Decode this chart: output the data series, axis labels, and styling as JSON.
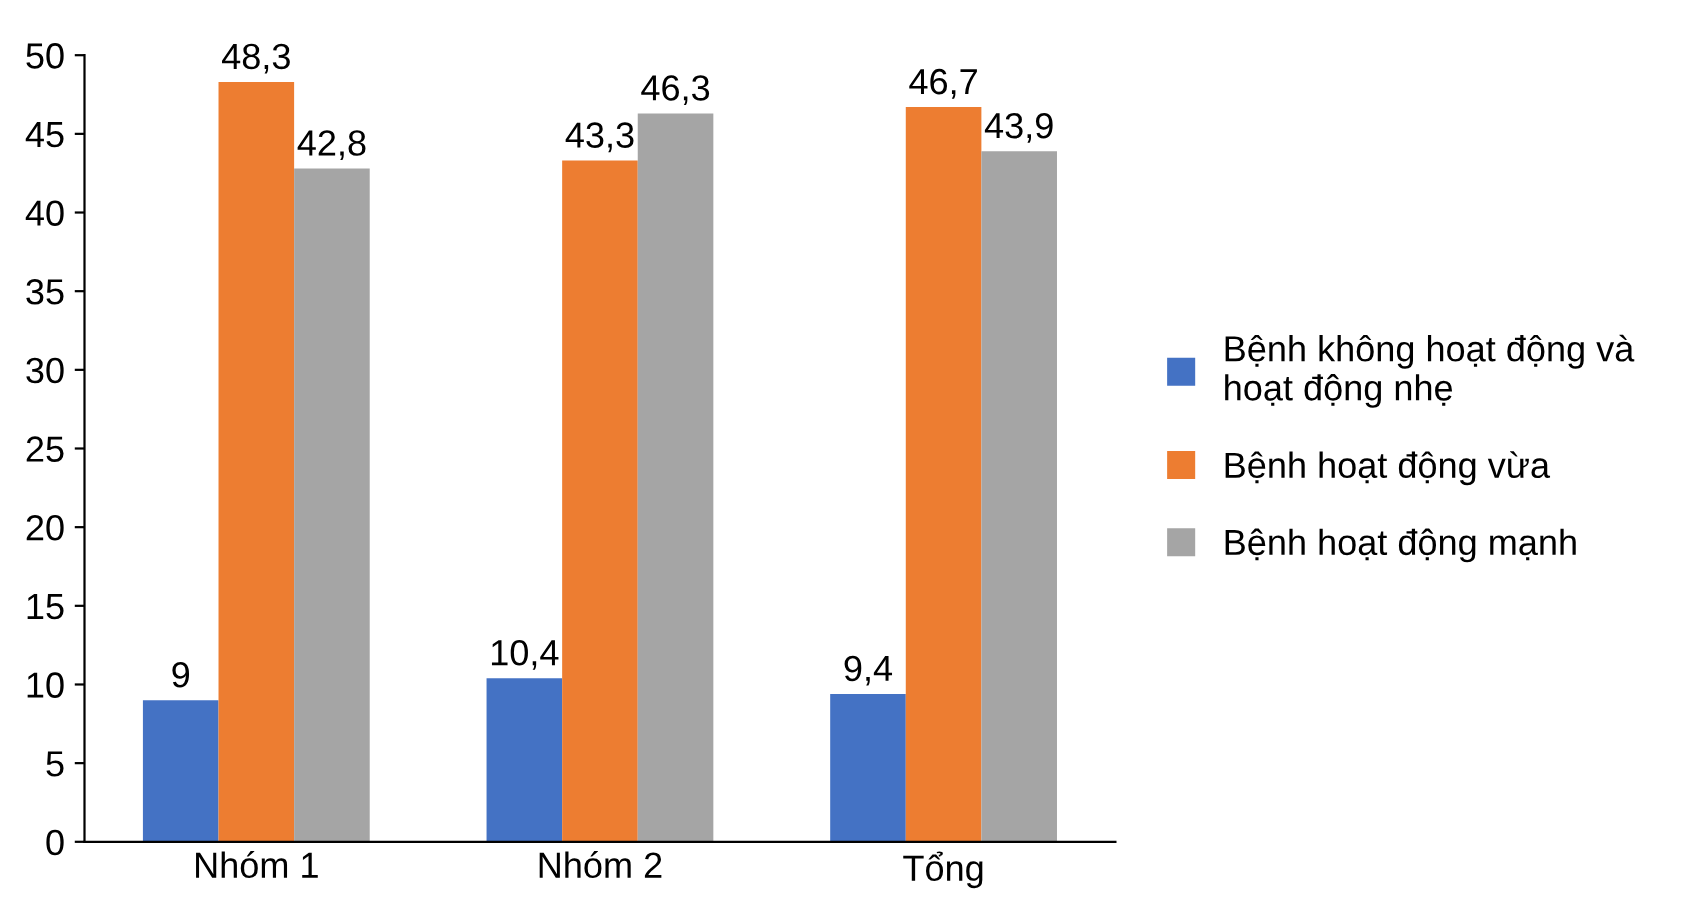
{
  "chart_data": {
    "type": "bar",
    "categories": [
      "Nhóm 1",
      "Nhóm 2",
      "Tổng"
    ],
    "series": [
      {
        "name": "Bệnh không hoạt động và\nhoạt động nhẹ",
        "color": "#4472c4",
        "values": [
          9,
          10.4,
          9.4
        ],
        "value_labels": [
          "9",
          "10,4",
          "9,4"
        ]
      },
      {
        "name": "Bệnh hoạt động vừa",
        "color": "#ed7d31",
        "values": [
          48.3,
          43.3,
          46.7
        ],
        "value_labels": [
          "48,3",
          "43,3",
          "46,7"
        ]
      },
      {
        "name": "Bệnh hoạt động mạnh",
        "color": "#a5a5a5",
        "values": [
          42.8,
          46.3,
          43.9
        ],
        "value_labels": [
          "42,8",
          "46,3",
          "43,9"
        ]
      }
    ],
    "ylim": [
      0,
      50
    ],
    "yticks": [
      0,
      5,
      10,
      15,
      20,
      25,
      30,
      35,
      40,
      45,
      50
    ],
    "grid": false,
    "legend": "right"
  }
}
